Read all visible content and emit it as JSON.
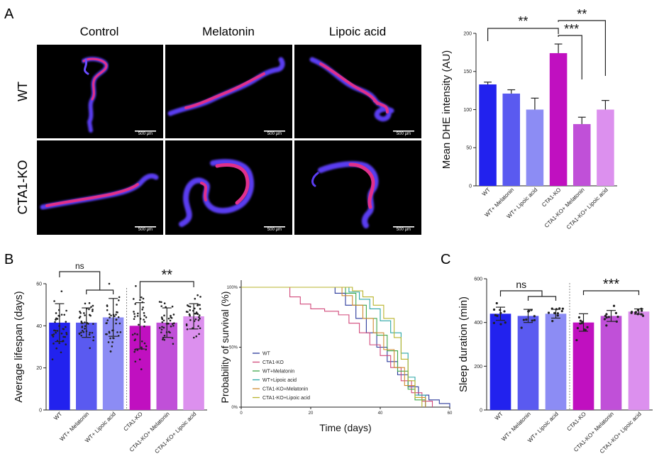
{
  "panel_labels": {
    "a": "A",
    "b": "B",
    "c": "C"
  },
  "micrographs": {
    "columns": [
      "Control",
      "Melatonin",
      "Lipoic acid"
    ],
    "rows": [
      "WT",
      "CTA1-KO"
    ],
    "scale_bar": "500 μm"
  },
  "colors": {
    "wt": "#2222ee",
    "wt_mel": "#5a5af0",
    "wt_la": "#8c8cf4",
    "ko": "#c010c0",
    "ko_mel": "#c050d8",
    "ko_la": "#dc90ee",
    "dots": "#222222",
    "km_wt": "#2b3a9c",
    "km_ko": "#d1487a",
    "km_wt_mel": "#3fa64a",
    "km_wt_la": "#2aa6a6",
    "km_ko_mel": "#d08a30",
    "km_ko_la": "#b9b42c"
  },
  "chart_data": [
    {
      "id": "A",
      "type": "bar",
      "categories": [
        "WT",
        "WT+ Melatonin",
        "WT+ Lipoic acid",
        "CTA1-KO",
        "CTA1-KO+ Melatonin",
        "CTA1-KO+ Lipoic acid"
      ],
      "values": [
        133,
        121,
        100,
        174,
        81,
        100
      ],
      "errors": [
        3,
        5,
        15,
        12,
        9,
        12
      ],
      "ylabel": "Mean DHE intensity (AU)",
      "ylim": [
        0,
        200
      ],
      "yticks": [
        0,
        50,
        100,
        150,
        200
      ],
      "significance": [
        {
          "from": 0,
          "to": 3,
          "label": "**"
        },
        {
          "from": 3,
          "to": 4,
          "label": "***"
        },
        {
          "from": 3,
          "to": 5,
          "label": "**"
        }
      ]
    },
    {
      "id": "B1",
      "type": "bar",
      "categories": [
        "WT",
        "WT+ Melatonin",
        "WT+ Lipoic acid",
        "CTA1-KO",
        "CTA1-KO+ Melatonin",
        "CTA1-KO+ Lipoic acid"
      ],
      "values": [
        41.5,
        41.5,
        44,
        40,
        41.5,
        44.5
      ],
      "errors": [
        9,
        7,
        9,
        11,
        7,
        6
      ],
      "ylabel": "Average lifespan (days)",
      "ylim": [
        0,
        60
      ],
      "yticks": [
        0,
        20,
        40,
        60
      ],
      "significance": [
        {
          "from": 0,
          "to": [
            1,
            2
          ],
          "label": "ns"
        },
        {
          "from": 3,
          "to": 5,
          "label": "**"
        }
      ]
    },
    {
      "id": "B2",
      "type": "line",
      "xlabel": "Time (days)",
      "ylabel": "Probability of survival (%)",
      "xlim": [
        0,
        60
      ],
      "ylim": [
        0,
        100
      ],
      "xticks": [
        0,
        20,
        40,
        60
      ],
      "yticks": [
        "0%",
        "50%",
        "100%"
      ],
      "series": [
        {
          "name": "WT",
          "x": [
            0,
            25,
            27,
            30,
            33,
            36,
            39,
            42,
            45,
            48,
            51,
            54,
            57,
            60
          ],
          "y": [
            100,
            100,
            95,
            85,
            74,
            62,
            50,
            38,
            27,
            17,
            10,
            6,
            3,
            0
          ]
        },
        {
          "name": "CTA1-KO",
          "x": [
            0,
            12,
            14,
            17,
            20,
            24,
            28,
            31,
            34,
            37,
            40,
            43,
            46,
            49,
            52,
            55
          ],
          "y": [
            100,
            100,
            92,
            86,
            82,
            80,
            77,
            70,
            62,
            52,
            43,
            33,
            22,
            12,
            5,
            0
          ]
        },
        {
          "name": "WT+Melatonin",
          "x": [
            0,
            27,
            30,
            33,
            36,
            39,
            42,
            45,
            48,
            50,
            53
          ],
          "y": [
            100,
            100,
            95,
            85,
            74,
            60,
            47,
            30,
            15,
            6,
            0
          ]
        },
        {
          "name": "WT+Lipoic acid",
          "x": [
            0,
            28,
            31,
            34,
            37,
            40,
            43,
            46,
            48,
            50,
            53
          ],
          "y": [
            100,
            100,
            96,
            90,
            82,
            72,
            62,
            45,
            25,
            10,
            0
          ]
        },
        {
          "name": "CTA1-KO+Melatonin",
          "x": [
            0,
            26,
            29,
            32,
            35,
            38,
            41,
            44,
            47,
            50,
            53
          ],
          "y": [
            100,
            100,
            93,
            85,
            74,
            62,
            48,
            33,
            18,
            8,
            0
          ]
        },
        {
          "name": "CTA1-KO+Lipoic acid",
          "x": [
            0,
            29,
            32,
            35,
            38,
            41,
            44,
            46,
            48,
            50,
            52
          ],
          "y": [
            100,
            100,
            97,
            92,
            85,
            74,
            58,
            40,
            22,
            8,
            0
          ]
        }
      ]
    },
    {
      "id": "C",
      "type": "bar",
      "categories": [
        "WT",
        "WT+ Melatonin",
        "WT+ Lipoic acid",
        "CTA1-KO",
        "CTA1-KO+ Melatonin",
        "CTA1-KO+ Lipoic acid"
      ],
      "values": [
        440,
        430,
        440,
        400,
        430,
        450
      ],
      "errors": [
        30,
        30,
        20,
        40,
        25,
        12
      ],
      "ylabel": "Sleep duration (min)",
      "ylim": [
        0,
        600
      ],
      "yticks": [
        0,
        200,
        400,
        600
      ],
      "significance": [
        {
          "from": 0,
          "to": [
            1,
            2
          ],
          "label": "ns"
        },
        {
          "from": 3,
          "to": 5,
          "label": "***"
        }
      ]
    }
  ]
}
